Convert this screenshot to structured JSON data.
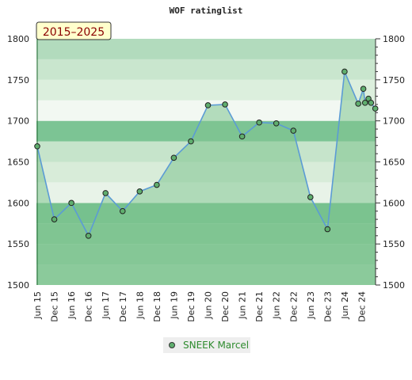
{
  "chart_data": {
    "type": "area",
    "title": "WOF ratinglist",
    "range_label": "2015–2025",
    "xlabel": "",
    "ylabel": "",
    "ylim": [
      1500,
      1800
    ],
    "yticks": [
      1500,
      1550,
      1600,
      1650,
      1700,
      1750,
      1800
    ],
    "xticks": [
      "Jun 15",
      "Dec 15",
      "Jun 16",
      "Dec 16",
      "Jun 17",
      "Dec 17",
      "Jun 18",
      "Dec 18",
      "Jun 19",
      "Dec 19",
      "Jun 20",
      "Dec 20",
      "Jun 21",
      "Dec 21",
      "Jun 22",
      "Dec 22",
      "Jun 23",
      "Dec 23",
      "Jun 24",
      "Dec 24"
    ],
    "grid": true,
    "legend_position": "bottom-center",
    "series": [
      {
        "name": "SNEEK Marcel",
        "color": "#5b9bd5",
        "fill": "#7fc48f",
        "marker_color": "#5fae6e",
        "x": [
          0,
          1,
          2,
          3,
          4,
          5,
          6,
          7,
          8,
          9,
          10,
          11,
          12,
          13,
          14,
          15,
          16,
          17,
          18,
          18.8,
          19.1,
          19.2,
          19.4,
          19.55,
          19.8
        ],
        "y": [
          1669,
          1580,
          1600,
          1560,
          1612,
          1590,
          1614,
          1622,
          1655,
          1675,
          1719,
          1720,
          1681,
          1698,
          1697,
          1688,
          1607,
          1568,
          1760,
          1721,
          1739,
          1722,
          1727,
          1722,
          1715
        ]
      }
    ]
  },
  "colors": {
    "band_dark": "#7cc494",
    "band_light": "#f2f8f2",
    "legend_bg": "#eeeeee",
    "range_bg": "#ffffcc"
  }
}
